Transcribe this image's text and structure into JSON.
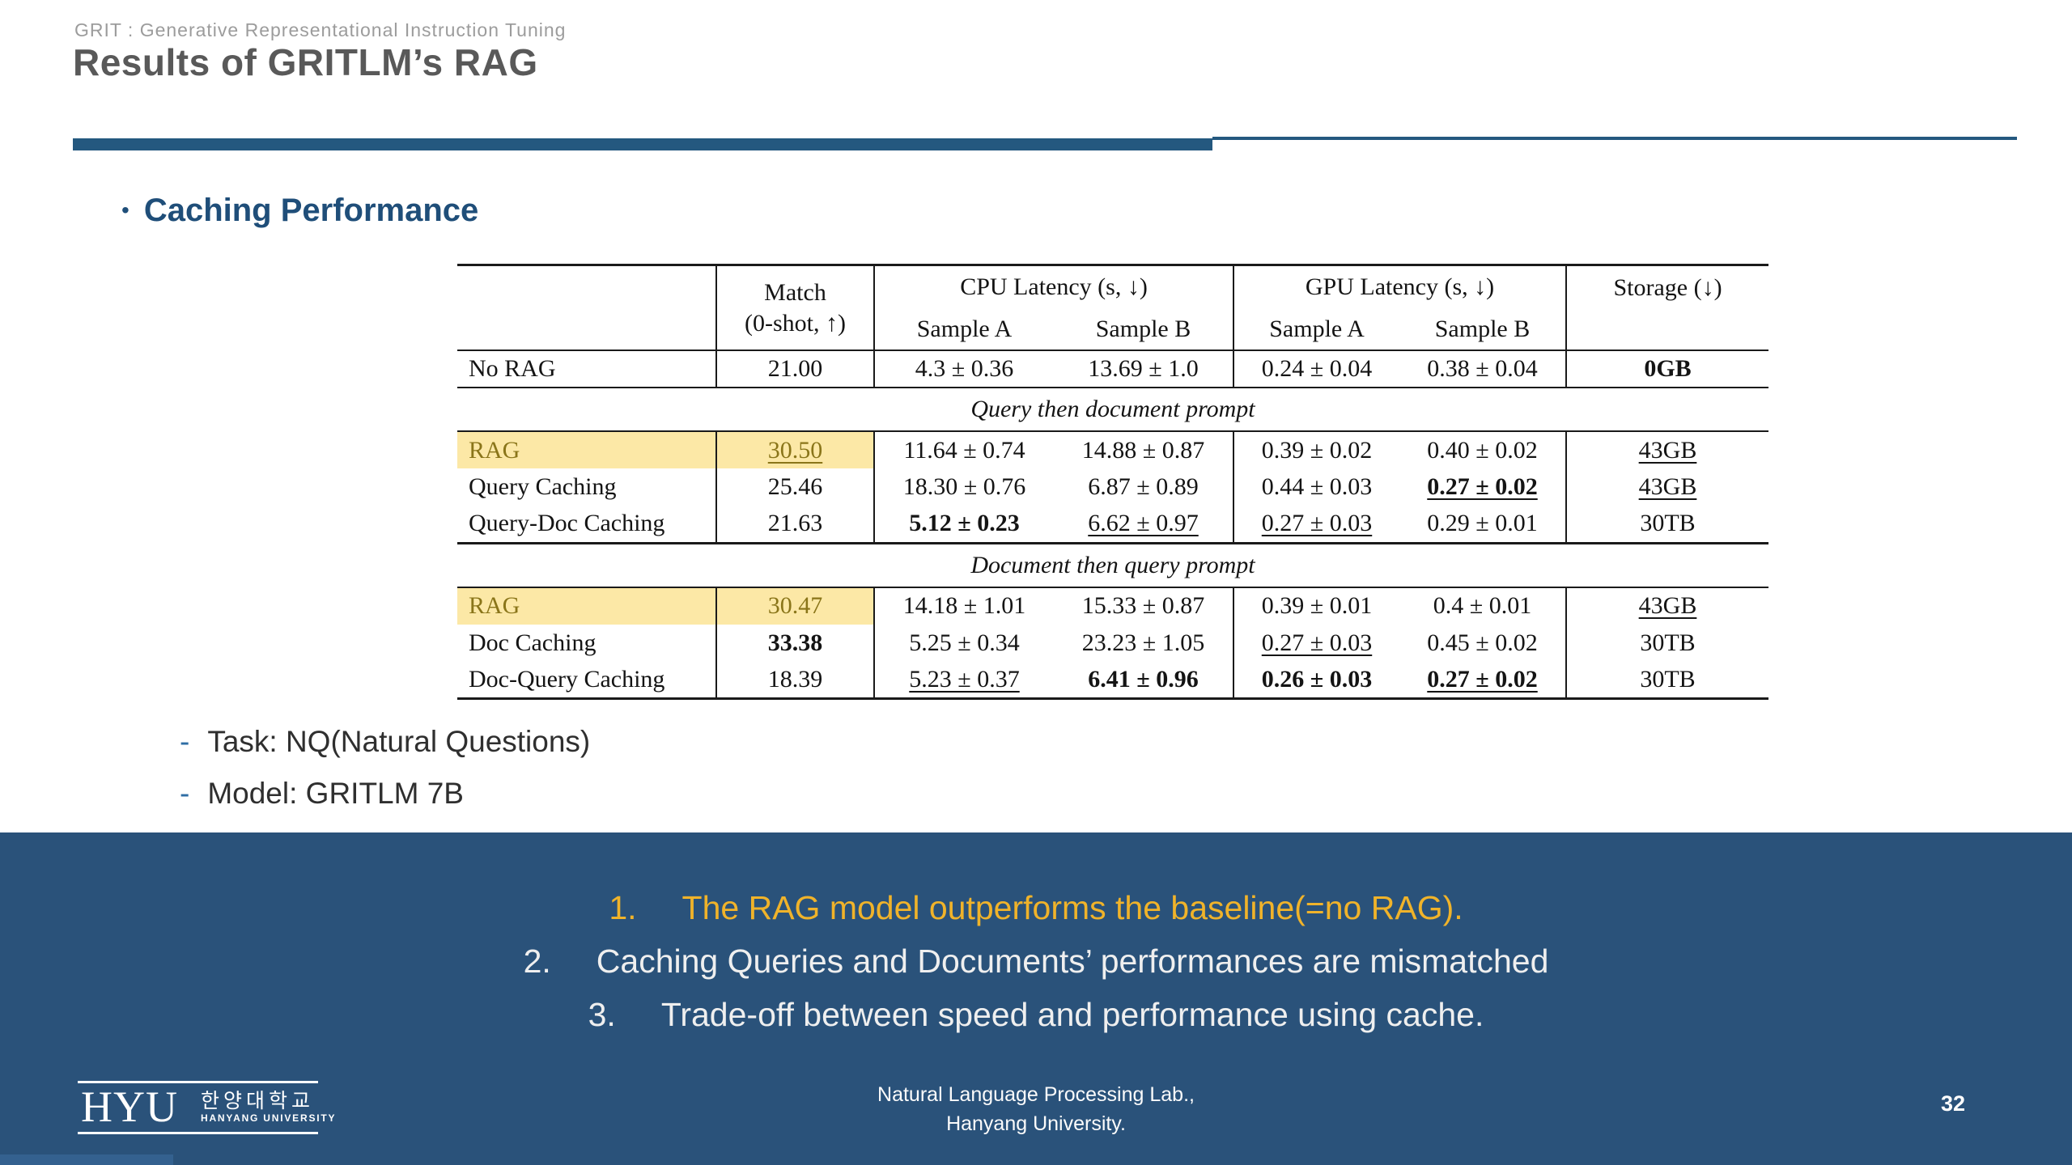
{
  "slide": {
    "eyebrow": "GRIT : Generative Representational Instruction Tuning",
    "title": "Results of GRITLM’s RAG",
    "bullet": "•",
    "section_heading": "Caching Performance",
    "page_number": "32"
  },
  "table": {
    "header": {
      "match1": "Match",
      "match2": "(0-shot, ↑)",
      "cpu": "CPU Latency (s, ↓)",
      "gpu": "GPU Latency (s, ↓)",
      "sample_a": "Sample A",
      "sample_b": "Sample B",
      "storage": "Storage (↓)"
    },
    "sections": [
      {
        "title": "",
        "rows": [
          {
            "label": "No RAG",
            "highlight": false,
            "cells": [
              [
                "21.00",
                ""
              ],
              [
                "4.3 ± 0.36",
                ""
              ],
              [
                "13.69 ± 1.0",
                ""
              ],
              [
                "0.24 ± 0.04",
                ""
              ],
              [
                "0.38 ± 0.04",
                ""
              ],
              [
                "0GB",
                "b"
              ]
            ]
          }
        ]
      },
      {
        "title": "Query then document prompt",
        "rows": [
          {
            "label": "RAG",
            "highlight": true,
            "cells": [
              [
                "30.50",
                "u"
              ],
              [
                "11.64 ± 0.74",
                ""
              ],
              [
                "14.88 ± 0.87",
                ""
              ],
              [
                "0.39 ± 0.02",
                ""
              ],
              [
                "0.40 ± 0.02",
                ""
              ],
              [
                "43GB",
                "u"
              ]
            ]
          },
          {
            "label": "Query Caching",
            "highlight": false,
            "cells": [
              [
                "25.46",
                ""
              ],
              [
                "18.30 ± 0.76",
                ""
              ],
              [
                "6.87 ± 0.89",
                ""
              ],
              [
                "0.44 ± 0.03",
                ""
              ],
              [
                "0.27 ± 0.02",
                "bu"
              ],
              [
                "43GB",
                "u"
              ]
            ]
          },
          {
            "label": "Query-Doc Caching",
            "highlight": false,
            "cells": [
              [
                "21.63",
                ""
              ],
              [
                "5.12 ± 0.23",
                "b"
              ],
              [
                "6.62 ± 0.97",
                "u"
              ],
              [
                "0.27 ± 0.03",
                "u"
              ],
              [
                "0.29 ± 0.01",
                ""
              ],
              [
                "30TB",
                ""
              ]
            ]
          }
        ]
      },
      {
        "title": "Document then query prompt",
        "rows": [
          {
            "label": "RAG",
            "highlight": true,
            "cells": [
              [
                "30.47",
                ""
              ],
              [
                "14.18 ± 1.01",
                ""
              ],
              [
                "15.33 ± 0.87",
                ""
              ],
              [
                "0.39 ± 0.01",
                ""
              ],
              [
                "0.4 ± 0.01",
                ""
              ],
              [
                "43GB",
                "u"
              ]
            ]
          },
          {
            "label": "Doc Caching",
            "highlight": false,
            "cells": [
              [
                "33.38",
                "b"
              ],
              [
                "5.25 ± 0.34",
                ""
              ],
              [
                "23.23 ± 1.05",
                ""
              ],
              [
                "0.27 ± 0.03",
                "u"
              ],
              [
                "0.45 ± 0.02",
                ""
              ],
              [
                "30TB",
                ""
              ]
            ]
          },
          {
            "label": "Doc-Query Caching",
            "highlight": false,
            "cells": [
              [
                "18.39",
                ""
              ],
              [
                "5.23 ± 0.37",
                "u"
              ],
              [
                "6.41 ± 0.96",
                "b"
              ],
              [
                "0.26 ± 0.03",
                "b"
              ],
              [
                "0.27 ± 0.02",
                "bu"
              ],
              [
                "30TB",
                ""
              ]
            ]
          }
        ]
      }
    ]
  },
  "details": [
    {
      "dash": "-",
      "text": "Task: NQ(Natural Questions)"
    },
    {
      "dash": "-",
      "text": "Model: GRITLM 7B"
    }
  ],
  "notes": [
    {
      "num": "1.",
      "text": "The RAG model outperforms the baseline(=no RAG)."
    },
    {
      "num": "2.",
      "text": "Caching Queries and Documents’ performances are mismatched"
    },
    {
      "num": "3.",
      "text": "Trade-off between speed and performance using cache."
    }
  ],
  "footer": {
    "logo_acronym": "HYU",
    "logo_korean": "한양대학교",
    "logo_english": "HANYANG UNIVERSITY",
    "lab_line1": "Natural Language Processing Lab.,",
    "lab_line2": "Hanyang University."
  },
  "colors": {
    "accent_blue": "#1F4E79",
    "band_navy": "#2A527A",
    "row_highlight": "#FCE8A6",
    "highlight_text": "#8A7519",
    "note_yellow": "#F0B32A",
    "title_gray": "#595959",
    "eyebrow_gray": "#9C9C9C"
  }
}
